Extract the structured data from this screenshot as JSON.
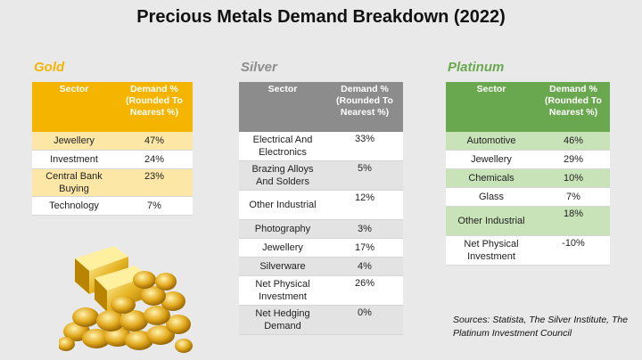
{
  "title": "Precious Metals Demand Breakdown (2022)",
  "colors": {
    "gold": "#f4b400",
    "silver": "#8c8c8c",
    "platinum": "#6aa84f"
  },
  "gold": {
    "label": "Gold",
    "headers": [
      "Sector",
      "Demand % (Rounded To Nearest %)"
    ],
    "rows": [
      [
        "Jewellery",
        "47%"
      ],
      [
        "Investment",
        "24%"
      ],
      [
        "Central Bank Buying",
        "23%"
      ],
      [
        "Technology",
        "7%"
      ]
    ]
  },
  "silver": {
    "label": "Silver",
    "headers": [
      "Sector",
      "Demand % (Rounded To Nearest %)"
    ],
    "rows": [
      [
        "Electrical And Electronics",
        "33%"
      ],
      [
        "Brazing Alloys And Solders",
        "5%"
      ],
      [
        "Other Industrial",
        "12%"
      ],
      [
        "Photography",
        "3%"
      ],
      [
        "Jewellery",
        "17%"
      ],
      [
        "Silverware",
        "4%"
      ],
      [
        "Net Physical Investment",
        "26%"
      ],
      [
        "Net Hedging Demand",
        "0%"
      ]
    ]
  },
  "platinum": {
    "label": "Platinum",
    "headers": [
      "Sector",
      "Demand % (Rounded To Nearest %)"
    ],
    "rows": [
      [
        "Automotive",
        "46%"
      ],
      [
        "Jewellery",
        "29%"
      ],
      [
        "Chemicals",
        "10%"
      ],
      [
        "Glass",
        "7%"
      ],
      [
        "Other Industrial",
        "18%"
      ],
      [
        "Net Physical Investment",
        "-10%"
      ]
    ]
  },
  "sources": "Sources: Statista, The Silver Institute, The Platinum Investment Council",
  "image": {
    "icon": "gold-bars-and-coins-icon"
  }
}
